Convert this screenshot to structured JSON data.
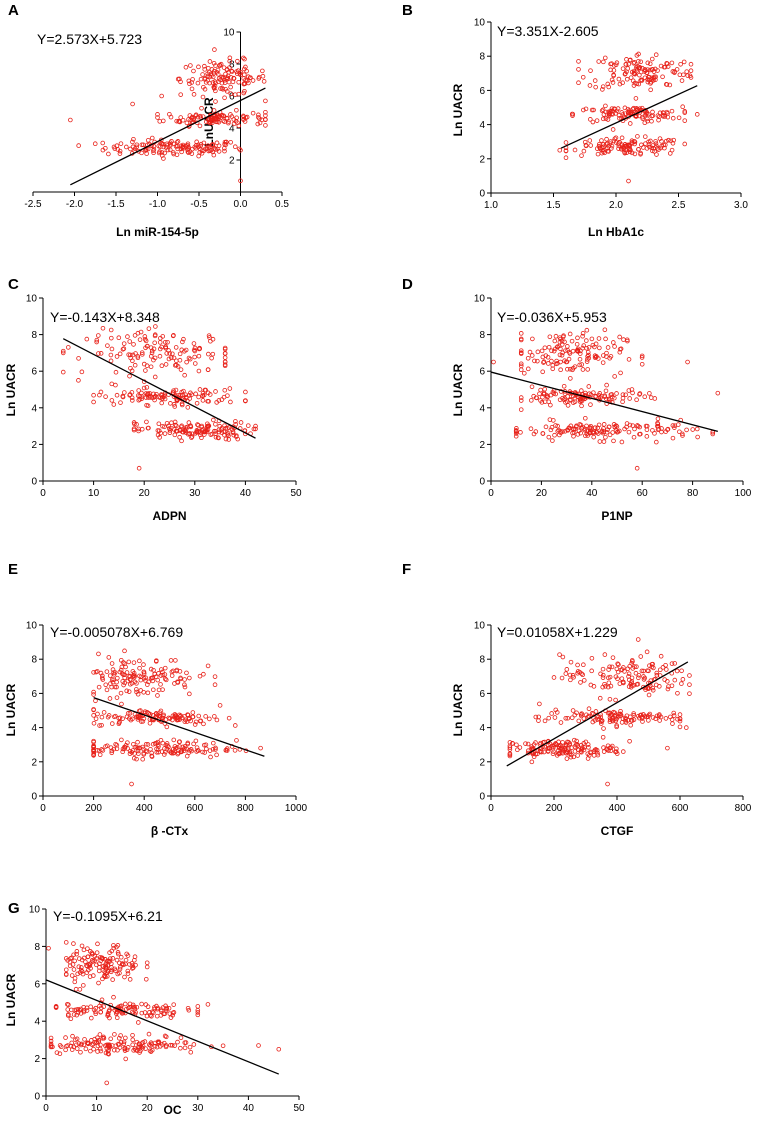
{
  "chart_data": [
    {
      "panel": "A",
      "type": "scatter",
      "equation": "Y=2.573X+5.723",
      "xlabel": "Ln miR-154-5p",
      "ylabel": "LnUACR",
      "xlim": [
        -2.5,
        0.5
      ],
      "ylim": [
        0,
        10
      ],
      "xticks": [
        "-2.5",
        "-2.0",
        "-1.5",
        "-1.0",
        "-0.5",
        "0.0",
        "0.5"
      ],
      "yticks": [
        "2",
        "4",
        "6",
        "8",
        "10"
      ],
      "yaxis_at_zero": true,
      "regression": {
        "slope": 2.573,
        "intercept": 5.723,
        "x_range": [
          -2.05,
          0.3
        ]
      },
      "clusters": [
        {
          "y": 2.75,
          "spread": 0.25,
          "x_min": -1.75,
          "x_max": 0.0,
          "n": 140,
          "x_center": -0.8
        },
        {
          "y": 4.6,
          "spread": 0.22,
          "x_min": -1.0,
          "x_max": 0.3,
          "n": 110,
          "x_center": -0.3
        },
        {
          "y": 7.1,
          "spread": 0.55,
          "x_min": -0.8,
          "x_max": 0.3,
          "n": 130,
          "x_center": -0.2
        }
      ],
      "outliers": [
        [
          -2.05,
          4.5
        ],
        [
          -1.95,
          2.9
        ],
        [
          0.0,
          0.7
        ],
        [
          -1.3,
          5.5
        ],
        [
          -0.95,
          6.0
        ]
      ]
    },
    {
      "panel": "B",
      "type": "scatter",
      "equation": "Y=3.351X-2.605",
      "xlabel": "Ln HbA1c",
      "ylabel": "Ln UACR",
      "xlim": [
        1.0,
        3.0
      ],
      "ylim": [
        0,
        10
      ],
      "xticks": [
        "1.0",
        "1.5",
        "2.0",
        "2.5",
        "3.0"
      ],
      "yticks": [
        "0",
        "2",
        "4",
        "6",
        "8",
        "10"
      ],
      "regression": {
        "slope": 3.351,
        "intercept": -2.605,
        "x_range": [
          1.56,
          2.65
        ]
      },
      "clusters": [
        {
          "y": 2.7,
          "spread": 0.25,
          "x_min": 1.6,
          "x_max": 2.55,
          "n": 120,
          "x_center": 2.1
        },
        {
          "y": 4.6,
          "spread": 0.22,
          "x_min": 1.65,
          "x_max": 2.55,
          "n": 110,
          "x_center": 2.1
        },
        {
          "y": 7.1,
          "spread": 0.55,
          "x_min": 1.7,
          "x_max": 2.6,
          "n": 130,
          "x_center": 2.2
        }
      ],
      "outliers": [
        [
          2.1,
          0.7
        ],
        [
          1.55,
          2.5
        ],
        [
          2.65,
          4.6
        ]
      ]
    },
    {
      "panel": "C",
      "type": "scatter",
      "equation": "Y=-0.143X+8.348",
      "xlabel": "ADPN",
      "ylabel": "Ln UACR",
      "xlim": [
        0,
        50
      ],
      "ylim": [
        0,
        10
      ],
      "xticks": [
        "0",
        "10",
        "20",
        "30",
        "40",
        "50"
      ],
      "yticks": [
        "0",
        "2",
        "4",
        "6",
        "8",
        "10"
      ],
      "regression": {
        "slope": -0.143,
        "intercept": 8.348,
        "x_range": [
          4,
          42
        ]
      },
      "clusters": [
        {
          "y": 2.75,
          "spread": 0.25,
          "x_min": 18,
          "x_max": 42,
          "n": 140,
          "x_center": 30
        },
        {
          "y": 4.6,
          "spread": 0.22,
          "x_min": 10,
          "x_max": 40,
          "n": 120,
          "x_center": 25
        },
        {
          "y": 7.0,
          "spread": 0.6,
          "x_min": 4,
          "x_max": 36,
          "n": 140,
          "x_center": 24
        }
      ],
      "outliers": [
        [
          19,
          0.7
        ],
        [
          4,
          7.0
        ],
        [
          5,
          7.3
        ],
        [
          7,
          5.5
        ],
        [
          18,
          3.2
        ]
      ]
    },
    {
      "panel": "D",
      "type": "scatter",
      "equation": "Y=-0.036X+5.953",
      "xlabel": "P1NP",
      "ylabel": "Ln UACR",
      "xlim": [
        0,
        100
      ],
      "ylim": [
        0,
        10
      ],
      "xticks": [
        "0",
        "20",
        "40",
        "60",
        "80",
        "100"
      ],
      "yticks": [
        "0",
        "2",
        "4",
        "6",
        "8",
        "10"
      ],
      "regression": {
        "slope": -0.036,
        "intercept": 5.953,
        "x_range": [
          0,
          90
        ]
      },
      "clusters": [
        {
          "y": 2.75,
          "spread": 0.25,
          "x_min": 10,
          "x_max": 88,
          "n": 150,
          "x_center": 45
        },
        {
          "y": 4.6,
          "spread": 0.22,
          "x_min": 12,
          "x_max": 65,
          "n": 120,
          "x_center": 35
        },
        {
          "y": 7.0,
          "spread": 0.6,
          "x_min": 12,
          "x_max": 60,
          "n": 140,
          "x_center": 30
        }
      ],
      "outliers": [
        [
          58,
          0.7
        ],
        [
          90,
          4.8
        ],
        [
          1,
          6.5
        ],
        [
          78,
          6.5
        ],
        [
          12,
          3.9
        ]
      ]
    },
    {
      "panel": "E",
      "type": "scatter",
      "equation": "Y=-0.005078X+6.769",
      "xlabel": "β -CTx",
      "ylabel": "Ln UACR",
      "xlim": [
        0,
        1000
      ],
      "ylim": [
        0,
        10
      ],
      "xticks": [
        "0",
        "200",
        "400",
        "600",
        "800",
        "1000"
      ],
      "yticks": [
        "0",
        "2",
        "4",
        "6",
        "8",
        "10"
      ],
      "regression": {
        "slope": -0.005078,
        "intercept": 6.769,
        "x_range": [
          200,
          875
        ]
      },
      "clusters": [
        {
          "y": 2.75,
          "spread": 0.25,
          "x_min": 200,
          "x_max": 860,
          "n": 150,
          "x_center": 450
        },
        {
          "y": 4.6,
          "spread": 0.22,
          "x_min": 200,
          "x_max": 760,
          "n": 120,
          "x_center": 450
        },
        {
          "y": 7.0,
          "spread": 0.6,
          "x_min": 200,
          "x_max": 680,
          "n": 140,
          "x_center": 380
        }
      ],
      "outliers": [
        [
          350,
          0.7
        ],
        [
          860,
          2.8
        ],
        [
          700,
          5.3
        ]
      ]
    },
    {
      "panel": "F",
      "type": "scatter",
      "equation": "Y=0.01058X+1.229",
      "xlabel": "CTGF",
      "ylabel": "Ln UACR",
      "xlim": [
        0,
        800
      ],
      "ylim": [
        0,
        10
      ],
      "xticks": [
        "0",
        "200",
        "400",
        "600",
        "800"
      ],
      "yticks": [
        "0",
        "2",
        "4",
        "6",
        "8",
        "10"
      ],
      "regression": {
        "slope": 0.01058,
        "intercept": 1.229,
        "x_range": [
          50,
          625
        ]
      },
      "clusters": [
        {
          "y": 2.75,
          "spread": 0.25,
          "x_min": 60,
          "x_max": 420,
          "n": 150,
          "x_center": 220
        },
        {
          "y": 4.6,
          "spread": 0.22,
          "x_min": 120,
          "x_max": 600,
          "n": 120,
          "x_center": 380
        },
        {
          "y": 7.0,
          "spread": 0.6,
          "x_min": 200,
          "x_max": 630,
          "n": 140,
          "x_center": 430
        }
      ],
      "outliers": [
        [
          370,
          0.7
        ],
        [
          560,
          2.8
        ],
        [
          620,
          4.0
        ],
        [
          440,
          3.2
        ]
      ]
    },
    {
      "panel": "G",
      "type": "scatter",
      "equation": "Y=-0.1095X+6.21",
      "xlabel": "OC",
      "ylabel": "Ln UACR",
      "xlim": [
        0,
        50
      ],
      "ylim": [
        0,
        10
      ],
      "xticks": [
        "0",
        "10",
        "20",
        "30",
        "40",
        "50"
      ],
      "yticks": [
        "0",
        "2",
        "4",
        "6",
        "8",
        "10"
      ],
      "regression": {
        "slope": -0.1095,
        "intercept": 6.21,
        "x_range": [
          0,
          46
        ]
      },
      "clusters": [
        {
          "y": 2.75,
          "spread": 0.25,
          "x_min": 1,
          "x_max": 35,
          "n": 150,
          "x_center": 15
        },
        {
          "y": 4.6,
          "spread": 0.22,
          "x_min": 2,
          "x_max": 30,
          "n": 120,
          "x_center": 14
        },
        {
          "y": 7.0,
          "spread": 0.55,
          "x_min": 4,
          "x_max": 20,
          "n": 140,
          "x_center": 11
        }
      ],
      "outliers": [
        [
          12,
          0.7
        ],
        [
          46,
          2.5
        ],
        [
          42,
          2.7
        ],
        [
          0.5,
          7.9
        ],
        [
          32,
          4.9
        ]
      ]
    }
  ]
}
